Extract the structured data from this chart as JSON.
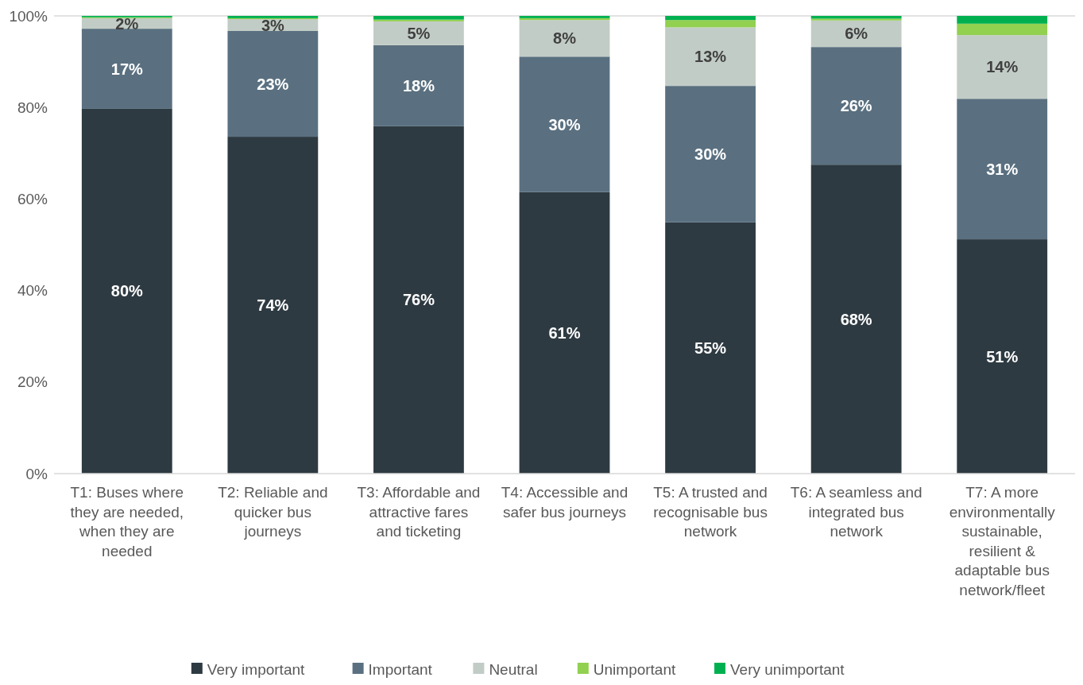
{
  "chart_data": {
    "type": "bar",
    "stacked": true,
    "categories": [
      "T1: Buses where they are needed, when they are needed",
      "T2: Reliable and quicker bus journeys",
      "T3: Affordable and attractive fares and ticketing",
      "T4: Accessible and safer bus journeys",
      "T5: A trusted and recognisable bus network",
      "T6: A seamless and integrated bus network",
      "T7: A more environmentally sustainable, resilient & adaptable bus network/fleet"
    ],
    "series": [
      {
        "name": "Very important",
        "color": "#2e3a42",
        "values": [
          79.7,
          73.6,
          75.9,
          61.5,
          54.9,
          67.5,
          51.2
        ],
        "value_labels": [
          "80%",
          "74%",
          "76%",
          "61%",
          "55%",
          "68%",
          "51%"
        ]
      },
      {
        "name": "Important",
        "color": "#5a7080",
        "values": [
          17.5,
          23.1,
          17.7,
          29.6,
          29.8,
          25.7,
          30.7
        ],
        "value_labels": [
          "17%",
          "23%",
          "18%",
          "30%",
          "30%",
          "26%",
          "31%"
        ]
      },
      {
        "name": "Neutral",
        "color": "#c2ccc6",
        "values": [
          2.3,
          2.6,
          5.2,
          8.0,
          12.8,
          5.8,
          13.9
        ],
        "value_labels": [
          "2%",
          "3%",
          "5%",
          "8%",
          "13%",
          "6%",
          "14%"
        ]
      },
      {
        "name": "Unimportant",
        "color": "#92d050",
        "values": [
          0.2,
          0.2,
          0.4,
          0.4,
          1.6,
          0.4,
          2.5
        ]
      },
      {
        "name": "Very unimportant",
        "color": "#00b050",
        "values": [
          0.3,
          0.5,
          0.8,
          0.5,
          0.9,
          0.6,
          1.7
        ]
      }
    ],
    "ylim": [
      0,
      100
    ],
    "yticks": [
      {
        "value": 0,
        "label": "0%"
      },
      {
        "value": 20,
        "label": "20%"
      },
      {
        "value": 40,
        "label": "40%"
      },
      {
        "value": 60,
        "label": "60%"
      },
      {
        "value": 80,
        "label": "80%"
      },
      {
        "value": 100,
        "label": "100%"
      }
    ],
    "legend": "bottom"
  }
}
